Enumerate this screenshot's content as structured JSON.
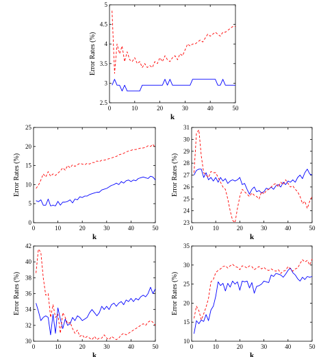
{
  "chart_data": [
    {
      "type": "line",
      "panel": "top",
      "xlabel": "k",
      "ylabel": "Error Rates (%)",
      "xlim": [
        0,
        50
      ],
      "ylim": [
        2.5,
        5
      ],
      "xticks": [
        0,
        10,
        20,
        30,
        40,
        50
      ],
      "yticks": [
        2.5,
        3,
        3.5,
        4,
        4.5,
        5
      ],
      "x": [
        1,
        2,
        3,
        4,
        5,
        6,
        7,
        8,
        9,
        10,
        11,
        12,
        13,
        14,
        15,
        16,
        17,
        18,
        19,
        20,
        21,
        22,
        23,
        24,
        25,
        26,
        27,
        28,
        29,
        30,
        31,
        32,
        33,
        34,
        35,
        36,
        37,
        38,
        39,
        40,
        41,
        42,
        43,
        44,
        45,
        46,
        47,
        48,
        49,
        50
      ],
      "series": [
        {
          "color": "#0000ff",
          "dash": "solid",
          "values": [
            2.95,
            3.1,
            2.95,
            2.95,
            2.8,
            2.95,
            2.8,
            2.8,
            2.8,
            2.8,
            2.8,
            2.8,
            2.95,
            2.95,
            2.95,
            2.95,
            2.95,
            2.95,
            2.95,
            2.95,
            2.95,
            3.1,
            2.95,
            3.1,
            2.95,
            2.95,
            2.95,
            2.95,
            2.95,
            2.95,
            2.95,
            2.95,
            3.1,
            3.1,
            3.1,
            3.1,
            3.1,
            3.1,
            3.1,
            3.1,
            3.1,
            3.1,
            2.95,
            2.95,
            3.1,
            2.95,
            2.95,
            2.95,
            2.95,
            2.95
          ]
        },
        {
          "color": "#ff0000",
          "dash": "dashed",
          "values": [
            4.85,
            3.25,
            4.0,
            3.75,
            3.95,
            3.55,
            3.8,
            3.6,
            3.55,
            3.65,
            3.5,
            3.55,
            3.4,
            3.5,
            3.4,
            3.45,
            3.4,
            3.55,
            3.5,
            3.65,
            3.55,
            3.7,
            3.6,
            3.55,
            3.65,
            3.7,
            3.6,
            3.75,
            3.7,
            3.85,
            4.0,
            3.95,
            4.0,
            4.0,
            4.05,
            4.1,
            4.05,
            4.15,
            4.25,
            4.2,
            4.25,
            4.3,
            4.25,
            4.2,
            4.3,
            4.3,
            4.35,
            4.4,
            4.45,
            4.45
          ]
        }
      ]
    },
    {
      "type": "line",
      "panel": "middle-left",
      "xlabel": "k",
      "ylabel": "Error Rates (%)",
      "xlim": [
        0,
        50
      ],
      "ylim": [
        0,
        25
      ],
      "xticks": [
        0,
        10,
        20,
        30,
        40,
        50
      ],
      "yticks": [
        0,
        5,
        10,
        15,
        20,
        25
      ],
      "x": [
        1,
        2,
        3,
        4,
        5,
        6,
        7,
        8,
        9,
        10,
        11,
        12,
        13,
        14,
        15,
        16,
        17,
        18,
        19,
        20,
        21,
        22,
        23,
        24,
        25,
        26,
        27,
        28,
        29,
        30,
        31,
        32,
        33,
        34,
        35,
        36,
        37,
        38,
        39,
        40,
        41,
        42,
        43,
        44,
        45,
        46,
        47,
        48,
        49,
        50
      ],
      "series": [
        {
          "color": "#0000ff",
          "dash": "solid",
          "values": [
            5.8,
            5.5,
            6.0,
            4.6,
            4.6,
            6.2,
            4.4,
            4.6,
            4.4,
            5.6,
            4.6,
            5.4,
            5.4,
            5.6,
            6.0,
            5.2,
            6.2,
            6.0,
            6.8,
            6.6,
            7.0,
            7.0,
            7.4,
            7.6,
            7.8,
            8.0,
            8.0,
            8.6,
            8.8,
            9.0,
            9.4,
            9.8,
            10.0,
            10.4,
            10.0,
            10.8,
            10.4,
            11.0,
            11.2,
            10.8,
            11.2,
            11.0,
            11.6,
            11.8,
            12.0,
            11.8,
            11.6,
            12.2,
            12.0,
            11.2
          ]
        },
        {
          "color": "#ff0000",
          "dash": "dashed",
          "values": [
            9.0,
            9.8,
            11.2,
            12.8,
            12.0,
            13.4,
            12.2,
            12.8,
            12.4,
            13.0,
            13.6,
            14.4,
            13.8,
            15.0,
            14.4,
            15.2,
            14.8,
            15.2,
            15.6,
            15.4,
            15.2,
            15.6,
            15.4,
            15.8,
            15.8,
            16.2,
            16.0,
            16.4,
            16.4,
            16.6,
            16.8,
            17.0,
            17.2,
            17.4,
            17.8,
            18.0,
            18.2,
            18.6,
            18.8,
            19.0,
            19.2,
            19.2,
            19.4,
            19.6,
            19.6,
            19.8,
            20.2,
            20.0,
            20.6,
            19.6
          ]
        }
      ]
    },
    {
      "type": "line",
      "panel": "middle-right",
      "xlabel": "k",
      "ylabel": "Error Rates (%)",
      "xlim": [
        0,
        50
      ],
      "ylim": [
        23,
        31
      ],
      "xticks": [
        0,
        10,
        20,
        30,
        40,
        50
      ],
      "yticks": [
        23,
        24,
        25,
        26,
        27,
        28,
        29,
        30,
        31
      ],
      "x": [
        1,
        2,
        3,
        4,
        5,
        6,
        7,
        8,
        9,
        10,
        11,
        12,
        13,
        14,
        15,
        16,
        17,
        18,
        19,
        20,
        21,
        22,
        23,
        24,
        25,
        26,
        27,
        28,
        29,
        30,
        31,
        32,
        33,
        34,
        35,
        36,
        37,
        38,
        39,
        40,
        41,
        42,
        43,
        44,
        45,
        46,
        47,
        48,
        49,
        50
      ],
      "series": [
        {
          "color": "#0000ff",
          "dash": "solid",
          "values": [
            27.0,
            27.4,
            27.5,
            27.5,
            26.8,
            27.2,
            26.6,
            26.8,
            26.5,
            26.8,
            26.4,
            26.8,
            26.5,
            26.7,
            26.3,
            26.5,
            26.6,
            26.5,
            26.6,
            26.8,
            26.2,
            26.3,
            25.8,
            25.4,
            25.8,
            26.0,
            25.6,
            25.7,
            25.5,
            25.6,
            25.9,
            25.8,
            26.0,
            25.8,
            26.1,
            26.2,
            26.0,
            26.4,
            26.2,
            26.5,
            26.4,
            26.6,
            26.4,
            26.8,
            27.0,
            26.7,
            27.2,
            27.5,
            27.1,
            27.0
          ]
        },
        {
          "color": "#ff0000",
          "dash": "dashed",
          "values": [
            27.2,
            30.5,
            30.8,
            28.6,
            27.2,
            27.0,
            26.8,
            27.3,
            27.2,
            27.2,
            26.8,
            26.4,
            26.0,
            25.8,
            25.0,
            24.0,
            23.2,
            23.0,
            24.2,
            25.2,
            25.8,
            25.6,
            25.4,
            25.2,
            25.5,
            25.3,
            25.2,
            25.0,
            25.6,
            25.4,
            25.7,
            25.8,
            26.0,
            26.2,
            26.3,
            26.0,
            26.4,
            26.2,
            26.6,
            26.3,
            26.0,
            26.1,
            25.8,
            25.6,
            25.2,
            24.6,
            24.8,
            24.2,
            24.8,
            25.2
          ]
        }
      ]
    },
    {
      "type": "line",
      "panel": "bottom-left",
      "xlabel": "k",
      "ylabel": "Error Rates (%)",
      "xlim": [
        0,
        50
      ],
      "ylim": [
        30,
        42
      ],
      "xticks": [
        0,
        10,
        20,
        30,
        40,
        50
      ],
      "yticks": [
        30,
        32,
        34,
        36,
        38,
        40,
        42
      ],
      "x": [
        1,
        2,
        3,
        4,
        5,
        6,
        7,
        8,
        9,
        10,
        11,
        12,
        13,
        14,
        15,
        16,
        17,
        18,
        19,
        20,
        21,
        22,
        23,
        24,
        25,
        26,
        27,
        28,
        29,
        30,
        31,
        32,
        33,
        34,
        35,
        36,
        37,
        38,
        39,
        40,
        41,
        42,
        43,
        44,
        45,
        46,
        47,
        48,
        49,
        50
      ],
      "series": [
        {
          "color": "#0000ff",
          "dash": "solid",
          "values": [
            34.8,
            33.8,
            32.6,
            33.0,
            33.2,
            33.0,
            30.8,
            33.4,
            31.0,
            34.2,
            32.8,
            31.6,
            32.8,
            32.0,
            32.2,
            33.0,
            32.6,
            33.2,
            33.0,
            32.6,
            32.8,
            33.0,
            33.6,
            34.0,
            33.6,
            33.2,
            33.6,
            34.4,
            34.0,
            34.4,
            34.0,
            34.6,
            34.8,
            34.4,
            34.8,
            35.0,
            34.6,
            35.2,
            35.0,
            35.4,
            35.0,
            35.4,
            35.2,
            35.6,
            35.8,
            35.6,
            36.0,
            36.8,
            36.0,
            36.6
          ]
        },
        {
          "color": "#ff0000",
          "dash": "dashed",
          "values": [
            38.6,
            41.6,
            41.2,
            38.0,
            35.8,
            36.0,
            33.0,
            34.6,
            33.0,
            33.4,
            31.0,
            33.6,
            33.0,
            32.2,
            32.4,
            31.6,
            31.0,
            31.4,
            30.6,
            30.8,
            30.4,
            30.6,
            30.4,
            30.2,
            30.6,
            30.2,
            30.4,
            30.4,
            30.8,
            30.4,
            30.2,
            30.6,
            30.4,
            30.2,
            30.4,
            30.8,
            31.0,
            30.8,
            31.0,
            31.2,
            31.4,
            31.6,
            31.8,
            32.0,
            32.2,
            32.0,
            32.4,
            32.6,
            32.4,
            32.0
          ]
        }
      ]
    },
    {
      "type": "line",
      "panel": "bottom-right",
      "xlabel": "k",
      "ylabel": "Error Rates (%)",
      "xlim": [
        0,
        50
      ],
      "ylim": [
        10,
        35
      ],
      "xticks": [
        0,
        10,
        20,
        30,
        40,
        50
      ],
      "yticks": [
        10,
        15,
        20,
        25,
        30,
        35
      ],
      "x": [
        1,
        2,
        3,
        4,
        5,
        6,
        7,
        8,
        9,
        10,
        11,
        12,
        13,
        14,
        15,
        16,
        17,
        18,
        19,
        20,
        21,
        22,
        23,
        24,
        25,
        26,
        27,
        28,
        29,
        30,
        31,
        32,
        33,
        34,
        35,
        36,
        37,
        38,
        39,
        40,
        41,
        42,
        43,
        44,
        45,
        46,
        47,
        48,
        49,
        50
      ],
      "series": [
        {
          "color": "#0000ff",
          "dash": "solid",
          "values": [
            12.0,
            15.4,
            14.6,
            15.6,
            15.2,
            17.0,
            15.4,
            18.2,
            19.2,
            21.8,
            25.6,
            24.6,
            25.2,
            23.2,
            25.2,
            24.2,
            25.8,
            25.0,
            25.6,
            23.4,
            25.8,
            25.6,
            25.8,
            24.0,
            25.4,
            22.6,
            24.4,
            24.6,
            25.0,
            25.8,
            25.6,
            25.4,
            27.4,
            27.0,
            27.8,
            27.6,
            27.4,
            26.8,
            27.6,
            28.6,
            29.2,
            28.0,
            27.4,
            26.4,
            25.8,
            26.8,
            26.2,
            27.0,
            26.8,
            27.0
          ]
        },
        {
          "color": "#ff0000",
          "dash": "dashed",
          "values": [
            16.0,
            19.2,
            18.0,
            15.6,
            17.2,
            19.0,
            21.2,
            25.6,
            26.2,
            28.0,
            28.6,
            29.0,
            29.6,
            29.8,
            29.2,
            29.8,
            30.2,
            29.6,
            29.4,
            28.8,
            29.8,
            29.6,
            29.2,
            29.8,
            29.6,
            28.8,
            29.2,
            29.6,
            29.0,
            29.4,
            28.8,
            28.6,
            29.0,
            28.6,
            28.4,
            28.8,
            27.8,
            28.4,
            28.6,
            29.6,
            29.0,
            28.4,
            29.0,
            29.2,
            30.4,
            31.4,
            30.8,
            31.2,
            30.0,
            31.6
          ]
        }
      ]
    }
  ]
}
